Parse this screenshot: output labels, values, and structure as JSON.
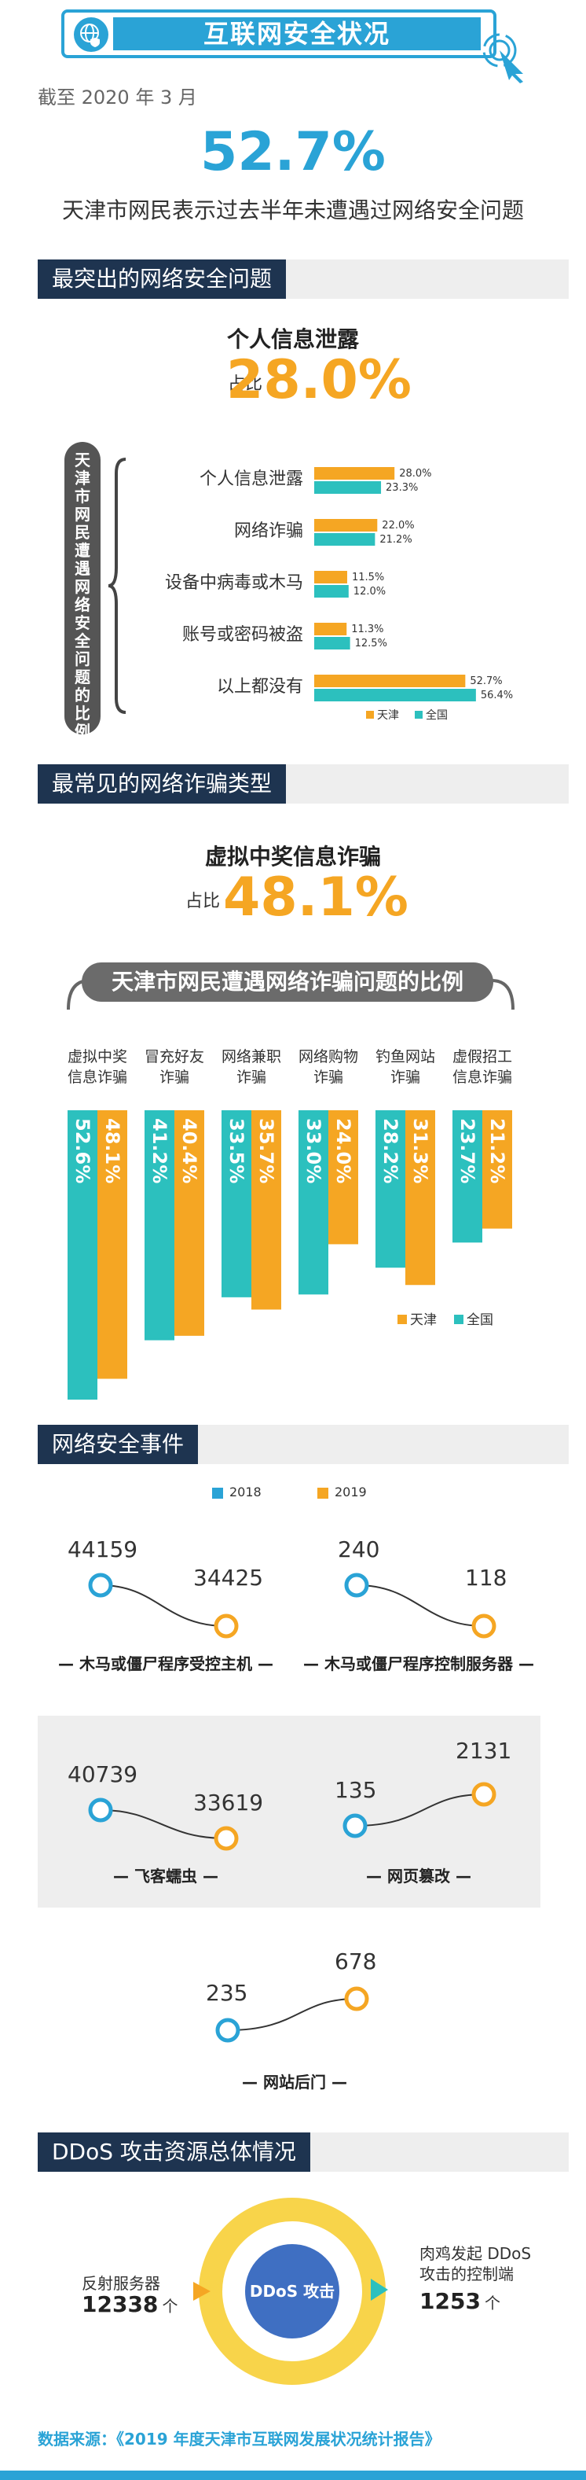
{
  "header": {
    "title": "互联网安全状况"
  },
  "intro": {
    "date": "截至 2020 年 3 月",
    "big_percent": "52.7%",
    "subtitle": "天津市网民表示过去半年未遭遇过网络安全问题"
  },
  "section1": {
    "title": "最突出的网络安全问题",
    "top_issue": "个人信息泄露",
    "share_label": "占比",
    "share_value": "28.0%",
    "vertical_label": "天津市网民遭遇网络安全问题的比例"
  },
  "section2": {
    "title": "最常见的网络诈骗类型",
    "top_type": "虚拟中奖信息诈骗",
    "share_label": "占比",
    "share_value": "48.1%",
    "pill_label": "天津市网民遭遇网络诈骗问题的比例"
  },
  "section3": {
    "title": "网络安全事件",
    "legend": [
      "2018",
      "2019"
    ],
    "items": [
      {
        "caption": "木马或僵尸程序受控主机",
        "v2018": "44159",
        "v2019": "34425"
      },
      {
        "caption": "木马或僵尸程序控制服务器",
        "v2018": "240",
        "v2019": "118"
      },
      {
        "caption": "飞客蠕虫",
        "v2018": "40739",
        "v2019": "33619"
      },
      {
        "caption": "网页篡改",
        "v2018": "135",
        "v2019": "2131"
      },
      {
        "caption": "网站后门",
        "v2018": "235",
        "v2019": "678"
      }
    ]
  },
  "section4": {
    "title": "DDoS 攻击资源总体情况",
    "center": "DDoS 攻击",
    "left_label": "反射服务器",
    "left_value": "12338",
    "left_unit": "个",
    "right_label1": "肉鸡发起 DDoS",
    "right_label2": "攻击的控制端",
    "right_value": "1253",
    "right_unit": "个"
  },
  "source": "数据来源：《2019 年度天津市互联网发展状况统计报告》",
  "colors": {
    "tianjin": "#f5a623",
    "national": "#2cc0be",
    "blue": "#2aa3d6",
    "navy": "#1e3450"
  },
  "chart_data": [
    {
      "type": "bar",
      "orientation": "horizontal",
      "categories": [
        "个人信息泄露",
        "网络诈骗",
        "设备中病毒或木马",
        "账号或密码被盗",
        "以上都没有"
      ],
      "series": [
        {
          "name": "天津",
          "values": [
            28.0,
            22.0,
            11.5,
            11.3,
            52.7
          ],
          "labels": [
            "28.0%",
            "22.0%",
            "11.5%",
            "11.3%",
            "52.7%"
          ]
        },
        {
          "name": "全国",
          "values": [
            23.3,
            21.2,
            12.0,
            12.5,
            56.4
          ],
          "labels": [
            "23.3%",
            "21.2%",
            "12.0%",
            "12.5%",
            "56.4%"
          ]
        }
      ],
      "xlim": [
        0,
        60
      ]
    },
    {
      "type": "bar",
      "orientation": "vertical-down",
      "categories": [
        "虚拟中奖信息诈骗",
        "冒充好友诈骗",
        "网络兼职诈骗",
        "网络购物诈骗",
        "钓鱼网站诈骗",
        "虚假招工信息诈骗"
      ],
      "category_lines": [
        [
          "虚拟中奖",
          "信息诈骗"
        ],
        [
          "冒充好友",
          "诈骗"
        ],
        [
          "网络兼职",
          "诈骗"
        ],
        [
          "网络购物",
          "诈骗"
        ],
        [
          "钓鱼网站",
          "诈骗"
        ],
        [
          "虚假招工",
          "信息诈骗"
        ]
      ],
      "series": [
        {
          "name": "全国",
          "values": [
            52.6,
            41.2,
            33.5,
            33.0,
            28.2,
            23.7
          ],
          "labels": [
            "52.6%",
            "41.2%",
            "33.5%",
            "33.0%",
            "28.2%",
            "23.7%"
          ]
        },
        {
          "name": "天津",
          "values": [
            48.1,
            40.4,
            35.7,
            24.0,
            31.3,
            21.2
          ],
          "labels": [
            "48.1%",
            "40.4%",
            "35.7%",
            "24.0%",
            "31.3%",
            "21.2%"
          ]
        }
      ],
      "ylim": [
        0,
        55
      ]
    }
  ]
}
